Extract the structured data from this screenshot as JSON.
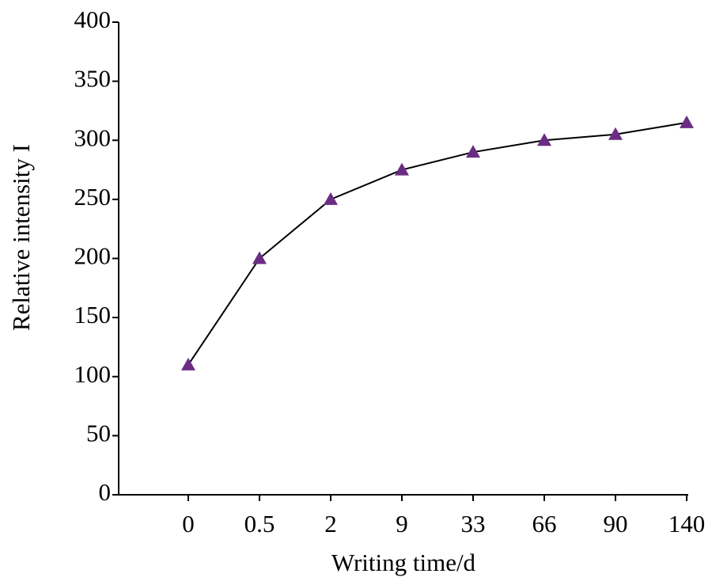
{
  "chart_data": {
    "type": "line",
    "xlabel": "Writing time/d",
    "ylabel": "Relative intensity I",
    "categories": [
      "0",
      "0.5",
      "2",
      "9",
      "33",
      "66",
      "90",
      "140"
    ],
    "series": [
      {
        "color": "#6a2d83",
        "values": [
          110,
          200,
          250,
          275,
          290,
          300,
          305,
          315
        ]
      }
    ],
    "ylim": [
      0,
      400
    ],
    "yticks": [
      0,
      50,
      100,
      150,
      200,
      250,
      300,
      350,
      400
    ]
  }
}
